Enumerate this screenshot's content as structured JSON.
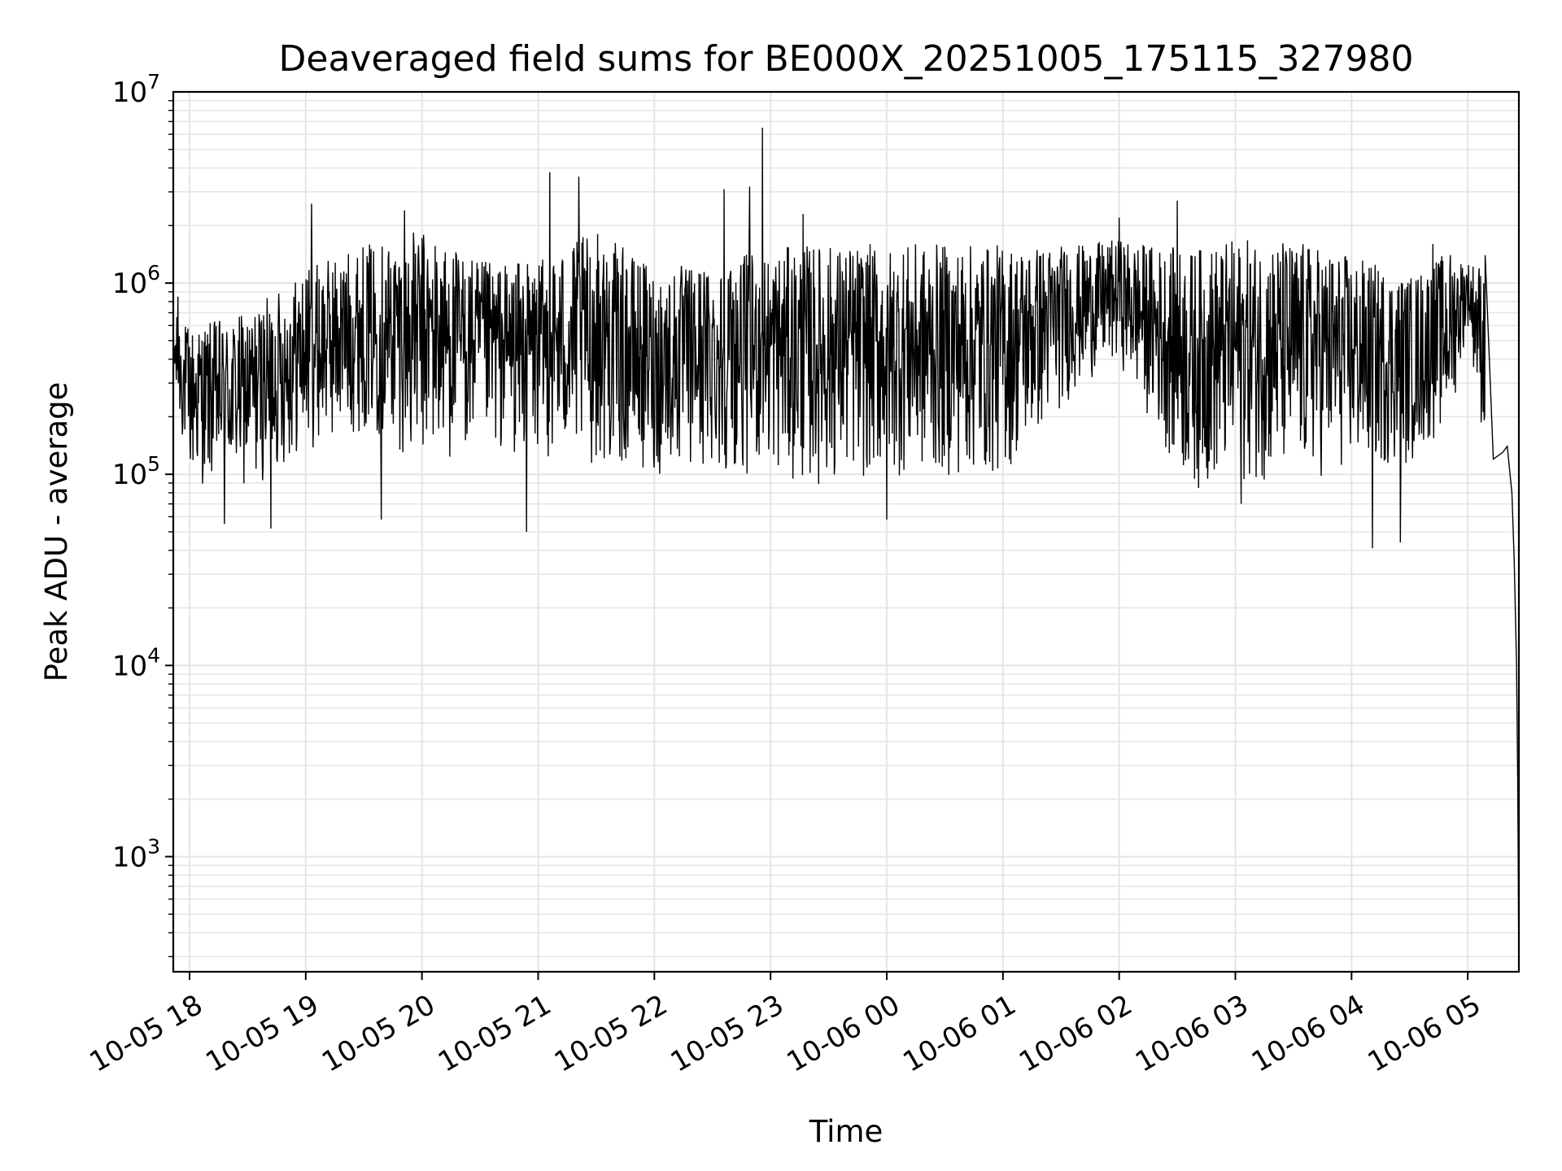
{
  "chart_data": {
    "type": "line",
    "title": "Deaveraged field sums for BE000X_20251005_175115_327980",
    "xlabel": "Time",
    "ylabel": "Peak ADU - average",
    "yscale": "log",
    "ylim": [
      250,
      10000000
    ],
    "xlim_hours": [
      -0.14,
      11.44
    ],
    "grid": true,
    "line_color": "#000000",
    "grid_color": "#e5e5e5",
    "x_ticks": [
      {
        "label": "10-05 18",
        "hour": 0
      },
      {
        "label": "10-05 19",
        "hour": 1
      },
      {
        "label": "10-05 20",
        "hour": 2
      },
      {
        "label": "10-05 21",
        "hour": 3
      },
      {
        "label": "10-05 22",
        "hour": 4
      },
      {
        "label": "10-05 23",
        "hour": 5
      },
      {
        "label": "10-06 00",
        "hour": 6
      },
      {
        "label": "10-06 01",
        "hour": 7
      },
      {
        "label": "10-06 02",
        "hour": 8
      },
      {
        "label": "10-06 03",
        "hour": 9
      },
      {
        "label": "10-06 04",
        "hour": 10
      },
      {
        "label": "10-06 05",
        "hour": 11
      }
    ],
    "y_ticks": [
      {
        "base": "10",
        "exp": "3",
        "value": 1000
      },
      {
        "base": "10",
        "exp": "4",
        "value": 10000
      },
      {
        "base": "10",
        "exp": "5",
        "value": 100000
      },
      {
        "base": "10",
        "exp": "6",
        "value": 1000000
      },
      {
        "base": "10",
        "exp": "7",
        "value": 10000000
      }
    ],
    "series": [
      {
        "name": "Deaveraged field sum",
        "envelope_hours": [
          -0.14,
          0.0,
          0.5,
          1.0,
          1.5,
          2.0,
          2.5,
          3.0,
          3.5,
          4.0,
          4.5,
          5.0,
          5.3,
          6.0,
          7.0,
          7.7,
          8.0,
          8.6,
          9.0,
          9.5,
          10.0,
          10.5,
          10.85,
          11.0,
          11.15
        ],
        "envelope_high": [
          700000,
          600000,
          700000,
          1200000,
          1600000,
          1900000,
          1300000,
          1300000,
          1900000,
          1200000,
          1300000,
          1500000,
          1600000,
          1600000,
          1600000,
          1600000,
          1700000,
          1500000,
          1700000,
          1700000,
          1400000,
          1100000,
          1500000,
          1300000,
          1300000
        ],
        "envelope_low": [
          250000,
          90000,
          80000,
          130000,
          170000,
          110000,
          130000,
          120000,
          110000,
          95000,
          100000,
          100000,
          85000,
          95000,
          95000,
          300000,
          380000,
          80000,
          90000,
          90000,
          100000,
          110000,
          180000,
          600000,
          120000
        ],
        "spikes": [
          {
            "hour": -0.1,
            "value": 850000
          },
          {
            "hour": 1.05,
            "value": 2600000
          },
          {
            "hour": 1.85,
            "value": 2400000
          },
          {
            "hour": 3.1,
            "value": 3800000
          },
          {
            "hour": 3.35,
            "value": 3600000
          },
          {
            "hour": 4.6,
            "value": 3100000
          },
          {
            "hour": 4.82,
            "value": 3200000
          },
          {
            "hour": 4.93,
            "value": 6500000
          },
          {
            "hour": 5.28,
            "value": 2300000
          },
          {
            "hour": 8.0,
            "value": 2200000
          },
          {
            "hour": 8.5,
            "value": 2700000
          },
          {
            "hour": 10.7,
            "value": 1600000
          },
          {
            "hour": 11.15,
            "value": 1400000
          }
        ],
        "dips": [
          {
            "hour": 0.3,
            "value": 55000
          },
          {
            "hour": 0.7,
            "value": 52000
          },
          {
            "hour": 1.65,
            "value": 58000
          },
          {
            "hour": 2.9,
            "value": 50000
          },
          {
            "hour": 6.0,
            "value": 58000
          },
          {
            "hour": 9.05,
            "value": 70000
          },
          {
            "hour": 10.18,
            "value": 41000
          },
          {
            "hour": 10.42,
            "value": 44000
          }
        ],
        "tail": [
          {
            "hour": 11.15,
            "value": 1400000
          },
          {
            "hour": 11.22,
            "value": 120000
          },
          {
            "hour": 11.3,
            "value": 130000
          },
          {
            "hour": 11.34,
            "value": 140000
          },
          {
            "hour": 11.38,
            "value": 80000
          },
          {
            "hour": 11.4,
            "value": 35000
          },
          {
            "hour": 11.42,
            "value": 10000
          },
          {
            "hour": 11.43,
            "value": 2500
          },
          {
            "hour": 11.44,
            "value": 250
          }
        ]
      }
    ]
  }
}
